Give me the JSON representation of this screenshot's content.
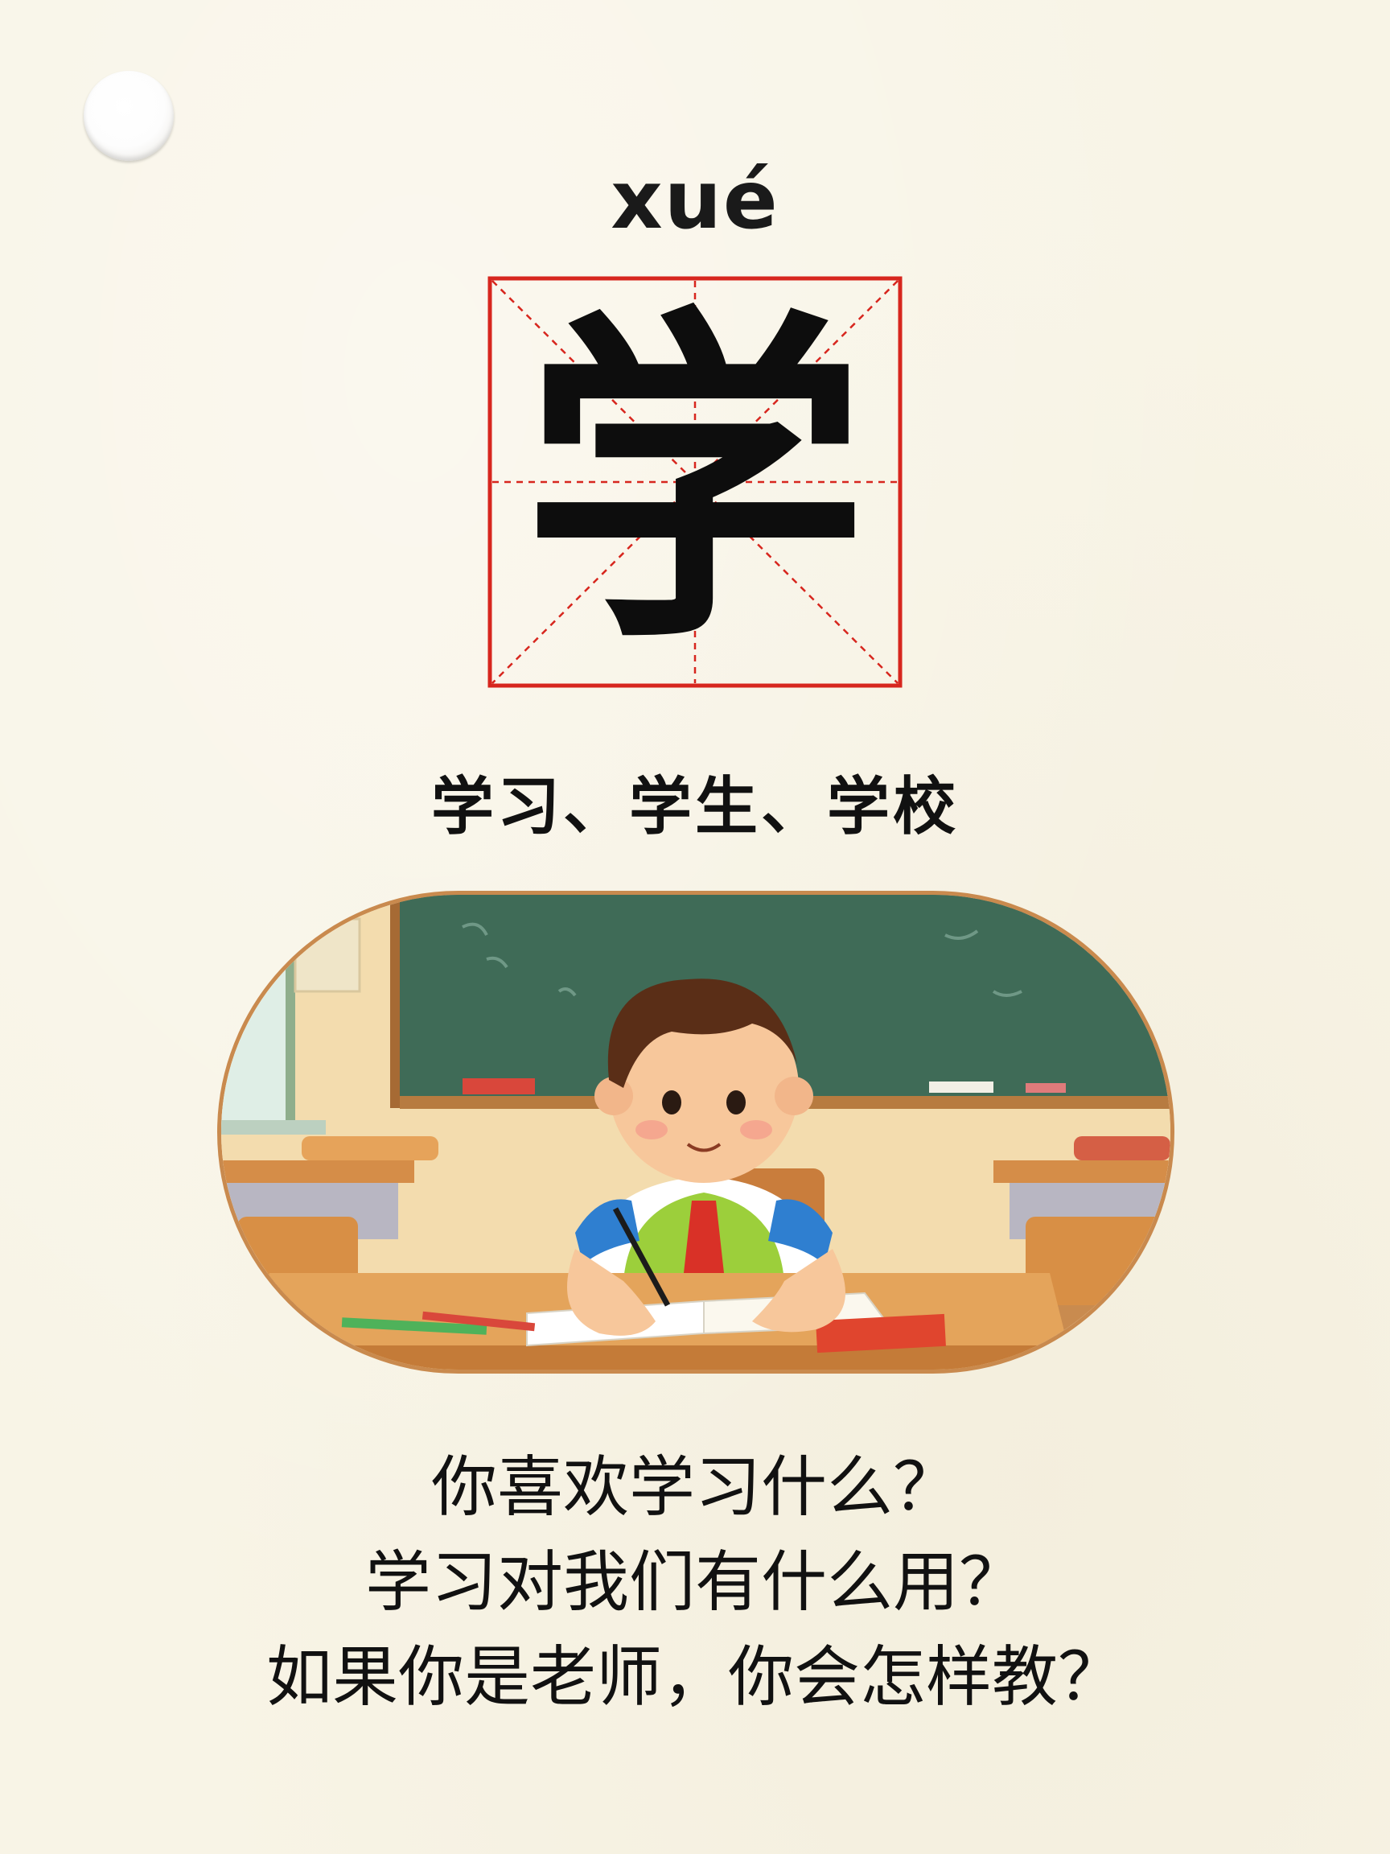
{
  "card": {
    "pinyin": "xué",
    "character": "学",
    "words": "学习、学生、学校",
    "questions": [
      "你喜欢学习什么？",
      "学习对我们有什么用？",
      "如果你是老师，你会怎样教？"
    ]
  },
  "colors": {
    "background": "#f8f4e6",
    "grid_red": "#d7261e",
    "text": "#111111",
    "illustration_border": "#c98a4e"
  },
  "icons": {
    "hole": "punch-hole",
    "illustration": "boy-writing-at-desk-classroom"
  }
}
